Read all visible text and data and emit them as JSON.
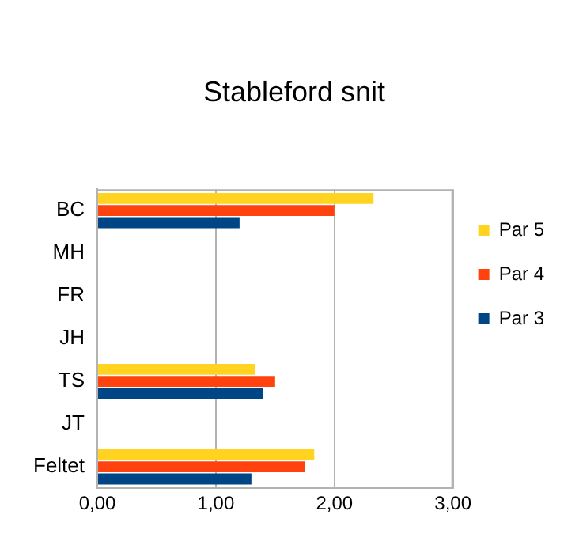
{
  "chart_data": {
    "type": "bar",
    "orientation": "horizontal",
    "title": "Stableford snit",
    "categories": [
      "BC",
      "MH",
      "FR",
      "JH",
      "TS",
      "JT",
      "Feltet"
    ],
    "series": [
      {
        "name": "Par 5",
        "color": "#ffd320",
        "values": [
          2.33,
          null,
          null,
          null,
          1.33,
          null,
          1.83
        ]
      },
      {
        "name": "Par 4",
        "color": "#ff420e",
        "values": [
          2.0,
          null,
          null,
          null,
          1.5,
          null,
          1.75
        ]
      },
      {
        "name": "Par 3",
        "color": "#004586",
        "values": [
          1.2,
          null,
          null,
          null,
          1.4,
          null,
          1.3
        ]
      }
    ],
    "xlim": [
      0,
      3
    ],
    "xticks": [
      {
        "value": 0,
        "label": "0,00"
      },
      {
        "value": 1,
        "label": "1,00"
      },
      {
        "value": 2,
        "label": "2,00"
      },
      {
        "value": 3,
        "label": "3,00"
      }
    ],
    "grid": "x",
    "legend": "right"
  }
}
